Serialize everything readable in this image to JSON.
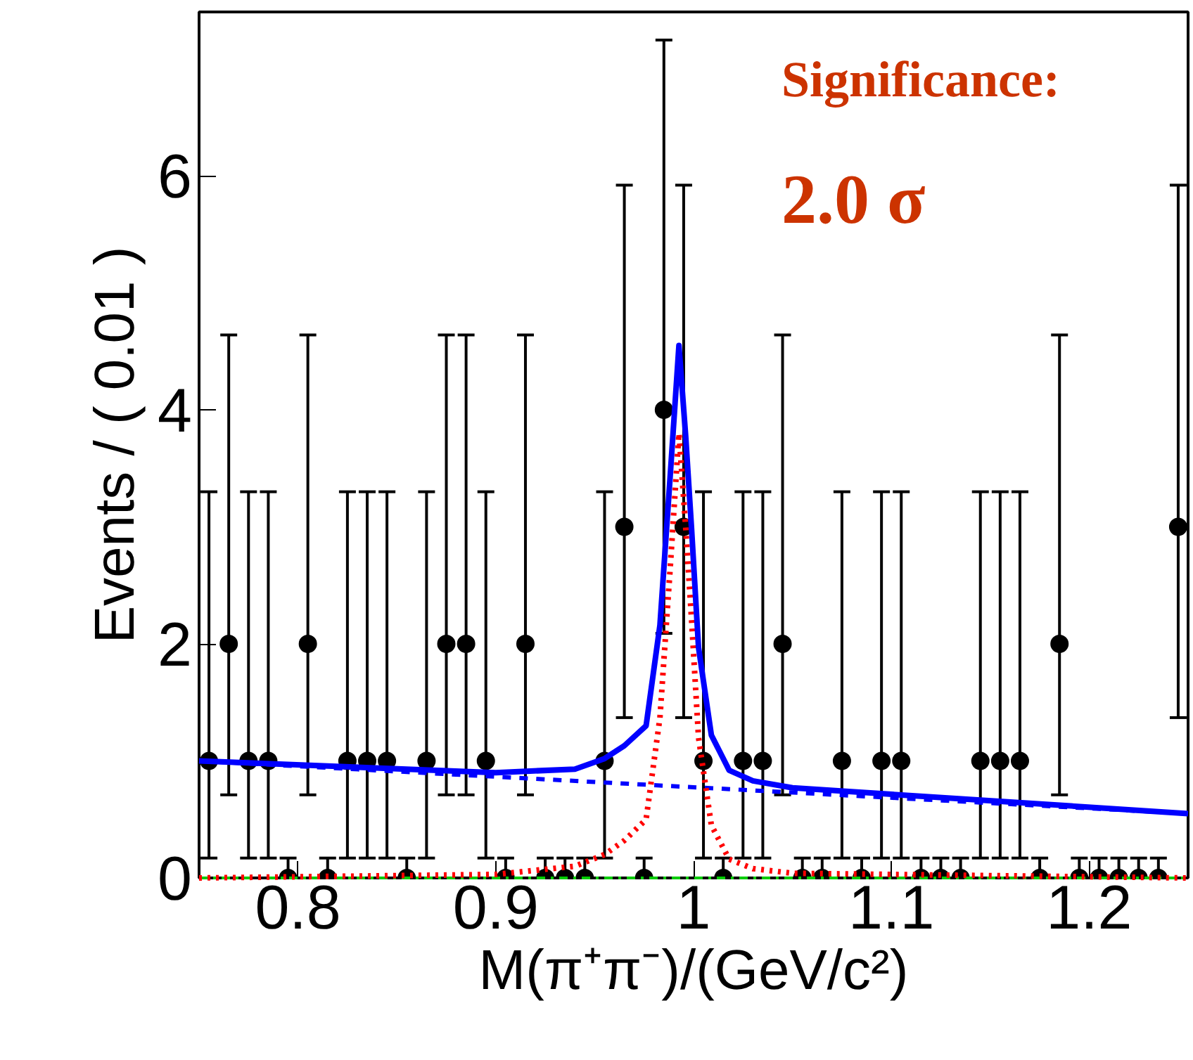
{
  "chart_data": {
    "type": "scatter",
    "xlabel": "M(π⁺π⁻)/(GeV/c²)",
    "ylabel": "Events / ( 0.01 )",
    "annotations": [
      "Significance:",
      "2.0 σ"
    ],
    "xlim": [
      0.75,
      1.25
    ],
    "ylim": [
      0,
      7.4
    ],
    "xticks": [
      0.8,
      0.9,
      1,
      1.1,
      1.2
    ],
    "yticks": [
      0,
      2,
      4,
      6
    ],
    "grid": false,
    "series": [
      {
        "type": "line",
        "color": "#00cc00",
        "line_style": "dashdot",
        "x": [
          0.75,
          1.25
        ],
        "values": [
          0,
          0
        ]
      },
      {
        "type": "line",
        "color": "#0000ff",
        "line_style": "dashed",
        "x": [
          0.75,
          1.25
        ],
        "values": [
          1.0,
          0.55
        ]
      },
      {
        "type": "line",
        "color": "#ff0000",
        "line_style": "dotted",
        "x": [
          0.75,
          0.9,
          0.94,
          0.955,
          0.965,
          0.976,
          0.983,
          0.988,
          0.9926,
          0.996,
          0.999,
          1.0025,
          1.009,
          1.018,
          1.03,
          1.05,
          1.25
        ],
        "values": [
          0,
          0.03,
          0.1,
          0.2,
          0.32,
          0.5,
          1.37,
          2.6,
          3.8,
          3.0,
          2.2,
          1.2,
          0.45,
          0.16,
          0.08,
          0.04,
          0
        ]
      },
      {
        "type": "line",
        "color": "#0000ff",
        "line_style": "solid",
        "x": [
          0.75,
          0.9,
          0.94,
          0.955,
          0.965,
          0.976,
          0.983,
          0.988,
          0.9926,
          0.996,
          0.999,
          1.0025,
          1.009,
          1.018,
          1.03,
          1.05,
          1.25
        ],
        "values": [
          1.0,
          0.9,
          0.93,
          1.02,
          1.13,
          1.3,
          2.16,
          3.39,
          4.55,
          3.78,
          2.98,
          1.97,
          1.22,
          0.92,
          0.83,
          0.77,
          0.55
        ]
      },
      {
        "color": "#000000",
        "marker": "circle",
        "x": [
          0.755,
          0.765,
          0.775,
          0.785,
          0.795,
          0.805,
          0.815,
          0.825,
          0.835,
          0.845,
          0.855,
          0.865,
          0.875,
          0.885,
          0.895,
          0.905,
          0.915,
          0.925,
          0.935,
          0.945,
          0.955,
          0.965,
          0.975,
          0.985,
          0.995,
          1.005,
          1.015,
          1.025,
          1.035,
          1.045,
          1.055,
          1.065,
          1.075,
          1.085,
          1.095,
          1.105,
          1.115,
          1.125,
          1.135,
          1.145,
          1.155,
          1.165,
          1.175,
          1.185,
          1.195,
          1.205,
          1.215,
          1.225,
          1.235,
          1.245
        ],
        "values": [
          1,
          2,
          1,
          1,
          0,
          2,
          0,
          1,
          1,
          1,
          0,
          1,
          2,
          2,
          1,
          0,
          2,
          0,
          0,
          0,
          1,
          3,
          0,
          4,
          3,
          1,
          0,
          1,
          1,
          2,
          0,
          0,
          1,
          0,
          1,
          1,
          0,
          0,
          0,
          1,
          1,
          1,
          0,
          2,
          0,
          0,
          0,
          0,
          0,
          3
        ],
        "errors": [
          [
            0.17,
            3.3
          ],
          [
            0.71,
            4.64
          ],
          [
            0.17,
            3.3
          ],
          [
            0.17,
            3.3
          ],
          [
            0,
            0.17
          ],
          [
            0.71,
            4.64
          ],
          [
            0,
            0.17
          ],
          [
            0.17,
            3.3
          ],
          [
            0.17,
            3.3
          ],
          [
            0.17,
            3.3
          ],
          [
            0,
            0.17
          ],
          [
            0.17,
            3.3
          ],
          [
            0.71,
            4.64
          ],
          [
            0.71,
            4.64
          ],
          [
            0.17,
            3.3
          ],
          [
            0,
            0.17
          ],
          [
            0.71,
            4.64
          ],
          [
            0,
            0.17
          ],
          [
            0,
            0.17
          ],
          [
            0,
            0.17
          ],
          [
            0.17,
            3.3
          ],
          [
            1.37,
            5.92
          ],
          [
            0,
            0.17
          ],
          [
            2.09,
            7.16
          ],
          [
            1.37,
            5.92
          ],
          [
            0.17,
            3.3
          ],
          [
            0,
            0.17
          ],
          [
            0.17,
            3.3
          ],
          [
            0.17,
            3.3
          ],
          [
            0.71,
            4.64
          ],
          [
            0,
            0.17
          ],
          [
            0,
            0.17
          ],
          [
            0.17,
            3.3
          ],
          [
            0,
            0.17
          ],
          [
            0.17,
            3.3
          ],
          [
            0.17,
            3.3
          ],
          [
            0,
            0.17
          ],
          [
            0,
            0.17
          ],
          [
            0,
            0.17
          ],
          [
            0.17,
            3.3
          ],
          [
            0.17,
            3.3
          ],
          [
            0.17,
            3.3
          ],
          [
            0,
            0.17
          ],
          [
            0.71,
            4.64
          ],
          [
            0,
            0.17
          ],
          [
            0,
            0.17
          ],
          [
            0,
            0.17
          ],
          [
            0,
            0.17
          ],
          [
            0,
            0.17
          ],
          [
            1.37,
            5.92
          ]
        ]
      }
    ]
  }
}
